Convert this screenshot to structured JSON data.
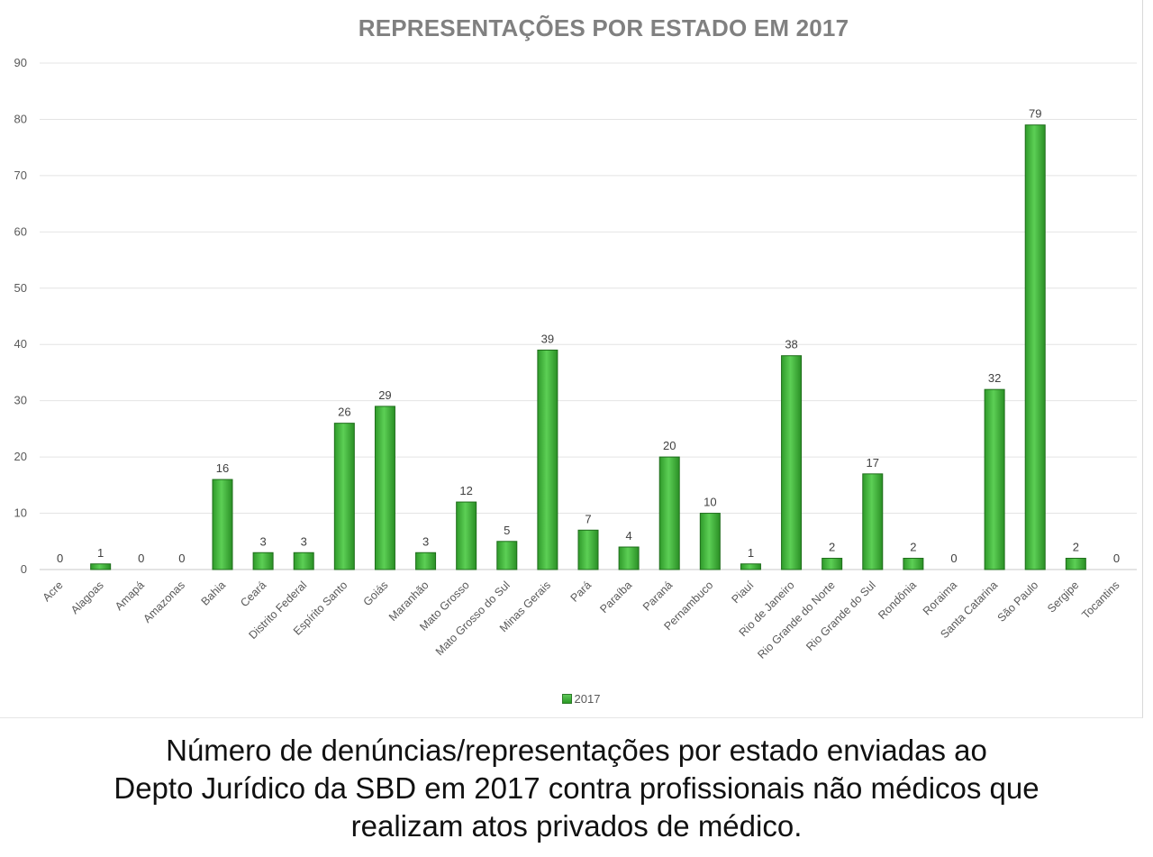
{
  "chart_data": {
    "type": "bar",
    "title": "REPRESENTAÇÕES POR ESTADO EM 2017",
    "categories": [
      "Acre",
      "Alagoas",
      "Amapá",
      "Amazonas",
      "Bahia",
      "Ceará",
      "Distrito Federal",
      "Espírito Santo",
      "Goiás",
      "Maranhão",
      "Mato Grosso",
      "Mato Grosso do Sul",
      "Minas Gerais",
      "Pará",
      "Paraíba",
      "Paraná",
      "Pernambuco",
      "Piauí",
      "Rio de Janeiro",
      "Rio Grande do Norte",
      "Rio Grande do Sul",
      "Rondônia",
      "Roraima",
      "Santa Catarina",
      "São Paulo",
      "Sergipe",
      "Tocantins"
    ],
    "series": [
      {
        "name": "2017",
        "values": [
          0,
          1,
          0,
          0,
          16,
          3,
          3,
          26,
          29,
          3,
          12,
          5,
          39,
          7,
          4,
          20,
          10,
          1,
          38,
          2,
          17,
          2,
          0,
          32,
          79,
          2,
          0
        ]
      }
    ],
    "ylim": [
      0,
      90
    ],
    "yticks": [
      0,
      10,
      20,
      30,
      40,
      50,
      60,
      70,
      80,
      90
    ],
    "grid": true,
    "legend_position": "bottom",
    "bar_color": "#3aaa35",
    "data_labels": true
  },
  "caption": {
    "line1": "Número de denúncias/representações por estado enviadas ao",
    "line2": "Depto Jurídico da SBD em 2017 contra profissionais não médicos que",
    "line3": "realizam atos privados de médico."
  }
}
